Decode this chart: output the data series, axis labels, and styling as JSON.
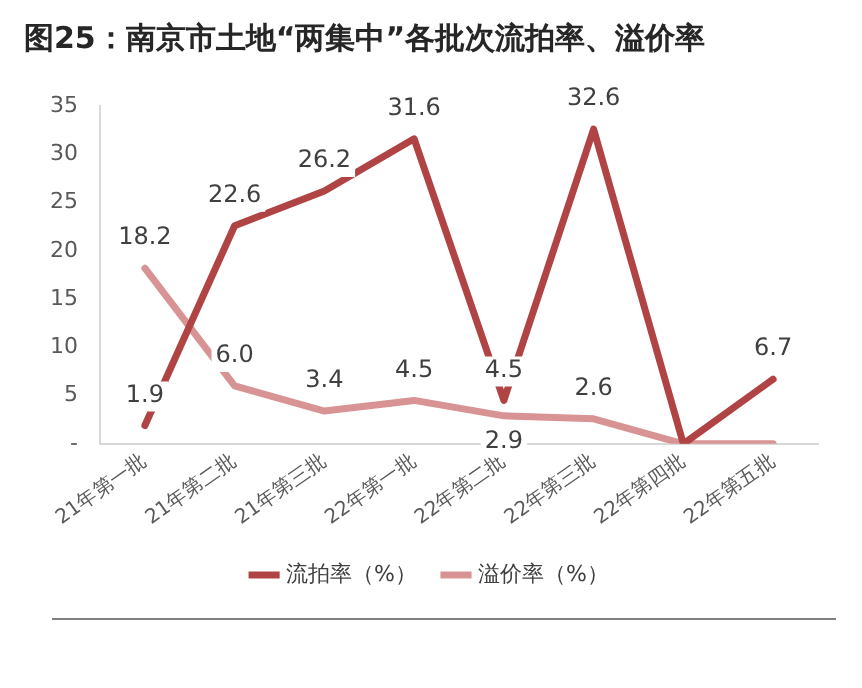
{
  "chart_data": {
    "type": "line",
    "title": "图25：南京市土地“两集中”各批次流拍率、溢价率",
    "categories": [
      "21年第一批",
      "21年第二批",
      "21年第三批",
      "22年第一批",
      "22年第二批",
      "22年第三批",
      "22年第四批",
      "22年第五批"
    ],
    "series": [
      {
        "name": "流拍率（%）",
        "color": "#b04444",
        "values": [
          1.9,
          22.6,
          26.2,
          31.6,
          4.5,
          32.6,
          0,
          6.7
        ],
        "value_labels": [
          "1.9",
          "22.6",
          "26.2",
          "31.6",
          "4.5",
          "32.6",
          null,
          "6.7"
        ]
      },
      {
        "name": "溢价率（%）",
        "color": "#d89494",
        "values": [
          18.2,
          6.0,
          3.4,
          4.5,
          2.9,
          2.6,
          0,
          0
        ],
        "value_labels": [
          "18.2",
          "6.0",
          "3.4",
          "4.5",
          "2.9",
          "2.6",
          null,
          null
        ]
      }
    ],
    "ylim": [
      0,
      35
    ],
    "yticks": [
      {
        "value": 0,
        "label": "-"
      },
      5,
      10,
      15,
      20,
      25,
      30,
      35
    ],
    "grid": false,
    "legend": "bottom",
    "marker": "none",
    "line_style": "solid"
  }
}
